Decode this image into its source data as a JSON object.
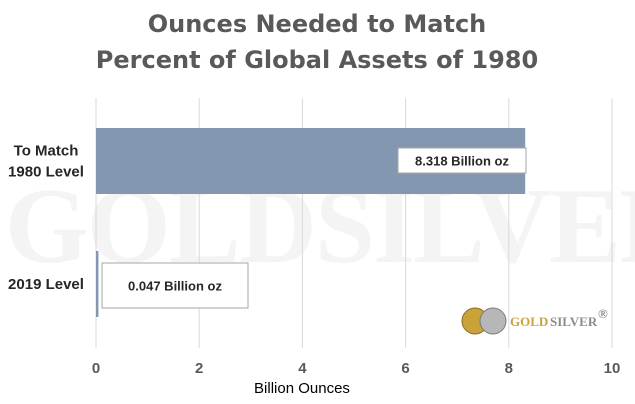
{
  "chart_data": {
    "type": "bar",
    "orientation": "horizontal",
    "title": "Ounces Needed to Match Percent of Global Assets of 1980",
    "title_lines": [
      "Ounces Needed to Match",
      "Percent of Global Assets of 1980"
    ],
    "categories": [
      {
        "lines": [
          "To Match",
          "1980 Level"
        ],
        "value": 8.318,
        "label": "8.318 Billion oz"
      },
      {
        "lines": [
          "2019 Level"
        ],
        "value": 0.047,
        "label": "0.047 Billion oz"
      }
    ],
    "xlabel": "Billion Ounces",
    "xlim": [
      0,
      10
    ],
    "xticks": [
      "0",
      "2",
      "4",
      "6",
      "8",
      "10"
    ],
    "grid": "vertical",
    "colors": {
      "bar": "#8497b0",
      "grid": "#d9d9d9",
      "title": "#595959",
      "gold": "#c9a23a",
      "silver": "#b7b7b7"
    }
  },
  "watermark": "GOLDSILVER",
  "logo": {
    "gold": "GOLD",
    "silver": "SILVER",
    "mark": "®"
  }
}
